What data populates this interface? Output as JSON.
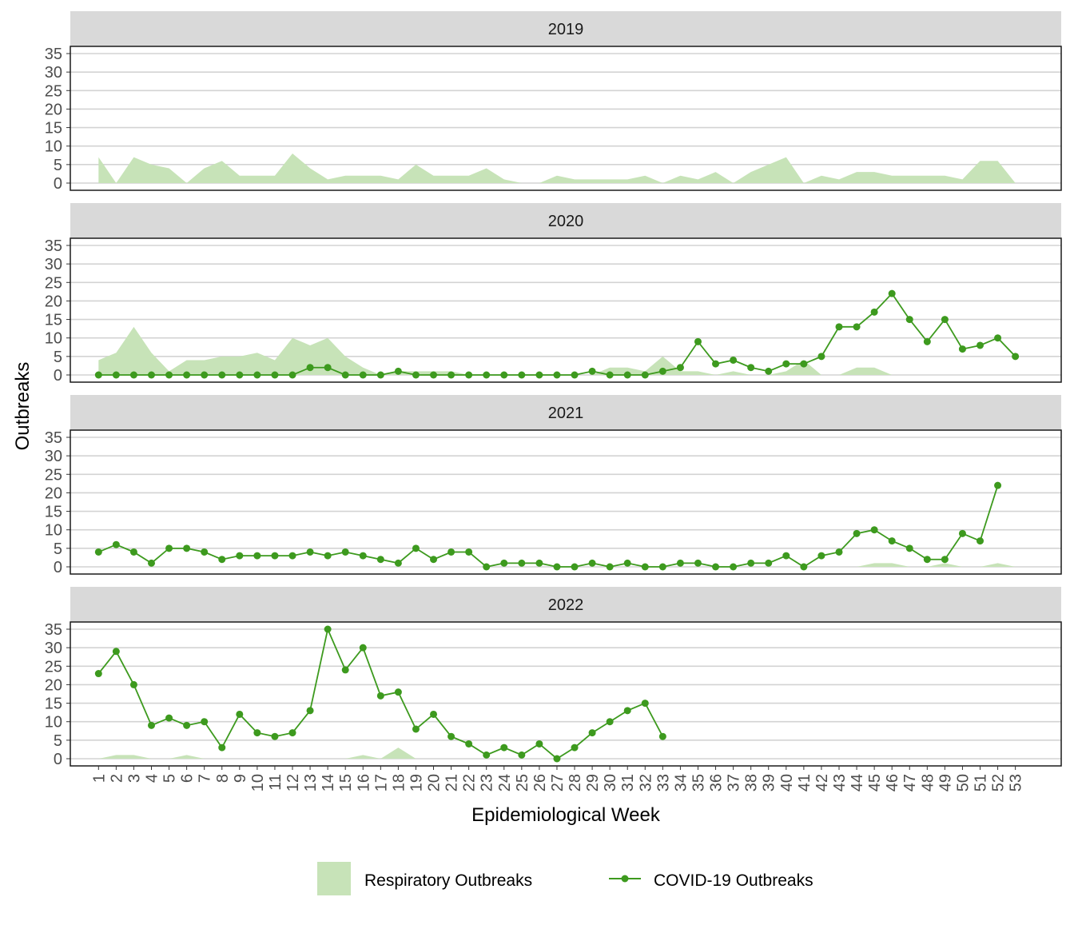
{
  "chart_data": {
    "type": "area",
    "ylabel": "Outbreaks",
    "xlabel": "Epidemiological Week",
    "x": [
      1,
      2,
      3,
      4,
      5,
      6,
      7,
      8,
      9,
      10,
      11,
      12,
      13,
      14,
      15,
      16,
      17,
      18,
      19,
      20,
      21,
      22,
      23,
      24,
      25,
      26,
      27,
      28,
      29,
      30,
      31,
      32,
      33,
      34,
      35,
      36,
      37,
      38,
      39,
      40,
      41,
      42,
      43,
      44,
      45,
      46,
      47,
      48,
      49,
      50,
      51,
      52,
      53
    ],
    "xlim": [
      1,
      55
    ],
    "ylim": [
      0,
      35
    ],
    "yticks": [
      0,
      5,
      10,
      15,
      20,
      25,
      30,
      35
    ],
    "grid": true,
    "legend_position": "bottom",
    "legend": {
      "respiratory_label": "Respiratory Outbreaks",
      "covid_label": "COVID-19 Outbreaks"
    },
    "colors": {
      "respiratory_fill": "#c7e3b8",
      "covid_line": "#3d9a1e",
      "strip_fill": "#d9d9d9",
      "grid": "#d3d3d3"
    },
    "panels": [
      {
        "title": "2019",
        "respiratory": [
          7,
          0,
          7,
          5,
          4,
          0,
          4,
          6,
          2,
          2,
          2,
          8,
          4,
          1,
          2,
          2,
          2,
          1,
          5,
          2,
          2,
          2,
          4,
          1,
          0,
          0,
          2,
          1,
          1,
          1,
          1,
          2,
          0,
          2,
          1,
          3,
          0,
          3,
          5,
          7,
          0,
          2,
          1,
          3,
          3,
          2,
          2,
          2,
          2,
          1,
          6,
          6,
          0
        ],
        "covid": null
      },
      {
        "title": "2020",
        "respiratory": [
          4,
          6,
          13,
          6,
          1,
          4,
          4,
          5,
          5,
          6,
          4,
          10,
          8,
          10,
          5,
          2,
          0,
          1,
          1,
          1,
          1,
          0,
          0,
          0,
          0,
          0,
          0,
          0,
          0,
          2,
          2,
          1,
          5,
          1,
          1,
          0,
          1,
          0,
          0,
          1,
          4,
          0,
          0,
          2,
          2,
          0,
          0,
          0,
          0,
          0,
          0,
          0,
          0
        ],
        "covid": [
          0,
          0,
          0,
          0,
          0,
          0,
          0,
          0,
          0,
          0,
          0,
          0,
          2,
          2,
          0,
          0,
          0,
          1,
          0,
          0,
          0,
          0,
          0,
          0,
          0,
          0,
          0,
          0,
          1,
          0,
          0,
          0,
          1,
          2,
          9,
          3,
          4,
          2,
          1,
          3,
          3,
          5,
          13,
          13,
          17,
          22,
          15,
          9,
          15,
          7,
          8,
          10,
          5
        ]
      },
      {
        "title": "2021",
        "respiratory": [
          0,
          0,
          0,
          0,
          0,
          0,
          0,
          0,
          0,
          0,
          0,
          0,
          0,
          0,
          0,
          0,
          0,
          0,
          0,
          0,
          0,
          0,
          0,
          0,
          0,
          0,
          0,
          0,
          0,
          0,
          0,
          0,
          0,
          0,
          0,
          0,
          0,
          0,
          0,
          0,
          0,
          0,
          0,
          0,
          1,
          1,
          0,
          0,
          1,
          0,
          0,
          1,
          0
        ],
        "covid": [
          4,
          6,
          4,
          1,
          5,
          5,
          4,
          2,
          3,
          3,
          3,
          3,
          4,
          3,
          4,
          3,
          2,
          1,
          5,
          2,
          4,
          4,
          0,
          1,
          1,
          1,
          0,
          0,
          1,
          0,
          1,
          0,
          0,
          1,
          1,
          0,
          0,
          1,
          1,
          3,
          0,
          3,
          4,
          9,
          10,
          7,
          5,
          2,
          2,
          9,
          7,
          22,
          null
        ]
      },
      {
        "title": "2022",
        "respiratory": [
          0,
          1,
          1,
          0,
          0,
          1,
          0,
          0,
          0,
          0,
          0,
          0,
          0,
          0,
          0,
          1,
          0,
          3,
          0,
          0,
          0,
          0,
          0,
          0,
          0,
          0,
          0,
          0,
          0,
          0,
          0,
          0,
          0,
          0,
          0,
          0,
          0,
          0,
          0,
          0,
          0,
          0,
          0,
          0,
          0,
          0,
          0,
          0,
          0,
          0,
          0,
          0,
          0
        ],
        "covid": [
          23,
          29,
          20,
          9,
          11,
          9,
          10,
          3,
          12,
          7,
          6,
          7,
          13,
          35,
          24,
          30,
          17,
          18,
          8,
          12,
          6,
          4,
          1,
          3,
          1,
          4,
          0,
          3,
          7,
          10,
          13,
          15,
          6,
          null,
          null,
          null,
          null,
          null,
          null,
          null,
          null,
          null,
          null,
          null,
          null,
          null,
          null,
          null,
          null,
          null,
          null,
          null,
          null
        ]
      }
    ]
  }
}
